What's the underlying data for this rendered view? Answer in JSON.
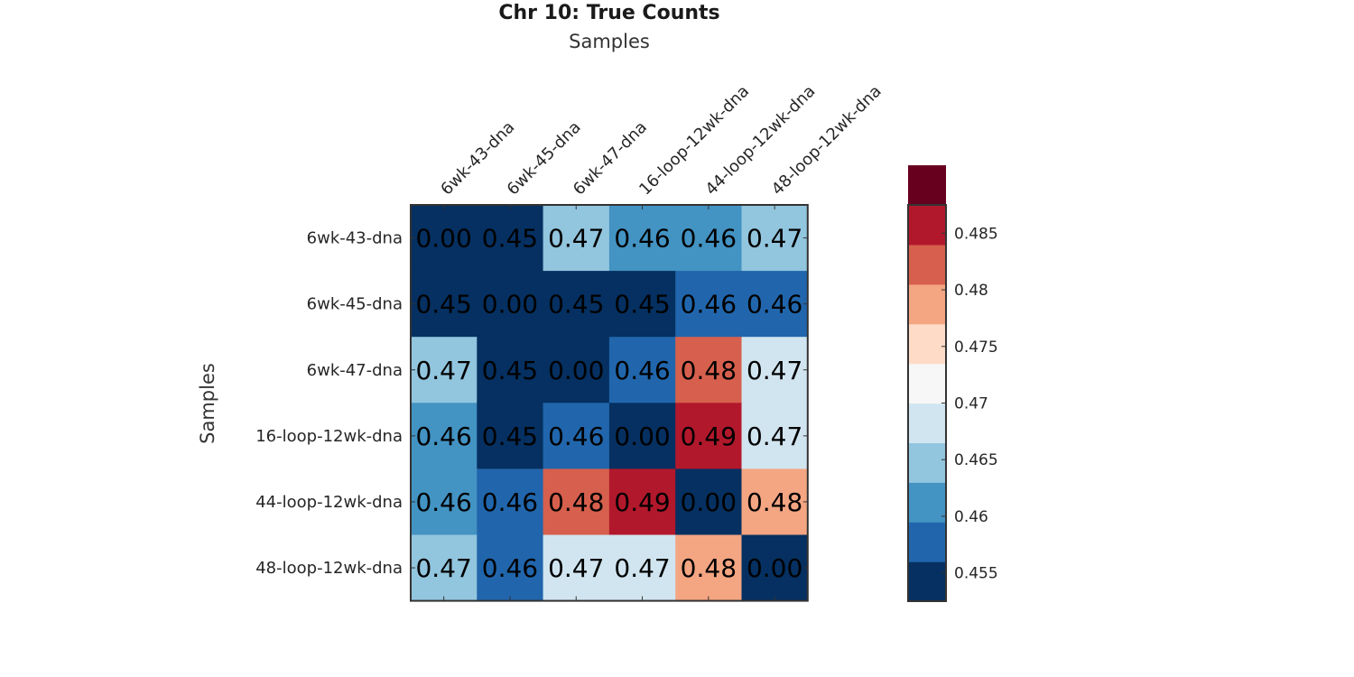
{
  "chart_data": {
    "type": "heatmap",
    "title": "Chr 10: True Counts",
    "xlabel": "Samples",
    "ylabel": "Samples",
    "x_categories": [
      "6wk-43-dna",
      "6wk-45-dna",
      "6wk-47-dna",
      "16-loop-12wk-dna",
      "44-loop-12wk-dna",
      "48-loop-12wk-dna"
    ],
    "y_categories": [
      "6wk-43-dna",
      "6wk-45-dna",
      "6wk-47-dna",
      "16-loop-12wk-dna",
      "44-loop-12wk-dna",
      "48-loop-12wk-dna"
    ],
    "values": [
      [
        0.0,
        0.452,
        0.466,
        0.462,
        0.462,
        0.466
      ],
      [
        0.452,
        0.0,
        0.452,
        0.452,
        0.459,
        0.459
      ],
      [
        0.466,
        0.452,
        0.0,
        0.459,
        0.482,
        0.469
      ],
      [
        0.462,
        0.452,
        0.459,
        0.0,
        0.487,
        0.469
      ],
      [
        0.462,
        0.459,
        0.482,
        0.487,
        0.0,
        0.479
      ],
      [
        0.466,
        0.459,
        0.469,
        0.469,
        0.479,
        0.0
      ]
    ],
    "labels": [
      [
        "0.00",
        "0.45",
        "0.47",
        "0.46",
        "0.46",
        "0.47"
      ],
      [
        "0.45",
        "0.00",
        "0.45",
        "0.45",
        "0.46",
        "0.46"
      ],
      [
        "0.47",
        "0.45",
        "0.00",
        "0.46",
        "0.48",
        "0.47"
      ],
      [
        "0.46",
        "0.45",
        "0.46",
        "0.00",
        "0.49",
        "0.47"
      ],
      [
        "0.46",
        "0.46",
        "0.48",
        "0.49",
        "0.00",
        "0.48"
      ],
      [
        "0.47",
        "0.46",
        "0.47",
        "0.47",
        "0.48",
        "0.00"
      ]
    ],
    "colorbar": {
      "range": [
        0.4525,
        0.4875
      ],
      "step": 0.0035,
      "ticks": [
        0.455,
        0.46,
        0.465,
        0.47,
        0.475,
        0.48,
        0.485
      ],
      "tick_labels": [
        "0.455",
        "0.46",
        "0.465",
        "0.47",
        "0.475",
        "0.48",
        "0.485"
      ],
      "colors": [
        "#053061",
        "#2166ac",
        "#4393c3",
        "#92c5de",
        "#d1e5f0",
        "#f7f7f7",
        "#fddbc7",
        "#f4a582",
        "#d6604d",
        "#b2182b",
        "#67001f"
      ],
      "location": "right"
    }
  }
}
